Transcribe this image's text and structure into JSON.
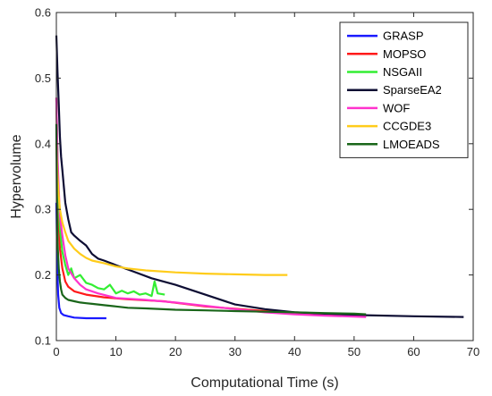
{
  "chart_data": {
    "type": "line",
    "xlabel": "Computational Time (s)",
    "ylabel": "Hypervolume",
    "xlim": [
      0,
      70
    ],
    "ylim": [
      0.1,
      0.6
    ],
    "xticks": [
      "0",
      "10",
      "20",
      "30",
      "40",
      "50",
      "60",
      "70"
    ],
    "yticks": [
      "0.1",
      "0.2",
      "0.3",
      "0.4",
      "0.5",
      "0.6"
    ],
    "grid": false,
    "legend_position": "top-right",
    "series": [
      {
        "name": "GRASP",
        "color": "#1a1aff",
        "x": [
          0,
          0.1,
          0.2,
          0.3,
          0.5,
          0.8,
          1.2,
          2,
          3,
          5,
          8.4
        ],
        "y": [
          0.31,
          0.25,
          0.2,
          0.17,
          0.15,
          0.142,
          0.139,
          0.137,
          0.135,
          0.134,
          0.134
        ]
      },
      {
        "name": "MOPSO",
        "color": "#ff1a1a",
        "x": [
          0,
          0.3,
          0.6,
          1,
          1.5,
          2,
          3,
          5,
          8,
          12,
          18,
          25,
          35,
          45,
          52
        ],
        "y": [
          0.47,
          0.3,
          0.24,
          0.21,
          0.19,
          0.182,
          0.175,
          0.17,
          0.166,
          0.163,
          0.16,
          0.152,
          0.145,
          0.14,
          0.137
        ]
      },
      {
        "name": "NSGAII",
        "color": "#33ee33",
        "x": [
          0,
          0.3,
          0.6,
          1,
          1.5,
          2,
          2.5,
          3,
          4,
          5,
          6,
          7,
          8,
          9,
          10,
          11,
          12,
          13,
          14,
          15,
          16,
          16.5,
          17,
          18.2
        ],
        "y": [
          0.47,
          0.33,
          0.27,
          0.235,
          0.215,
          0.2,
          0.21,
          0.195,
          0.2,
          0.188,
          0.185,
          0.18,
          0.178,
          0.185,
          0.172,
          0.176,
          0.172,
          0.175,
          0.17,
          0.172,
          0.168,
          0.19,
          0.172,
          0.17
        ]
      },
      {
        "name": "SparseEA2",
        "color": "#0d0d33",
        "x": [
          0,
          0.2,
          0.4,
          0.6,
          0.8,
          1,
          1.5,
          2,
          2.5,
          3,
          4,
          5,
          6,
          7,
          8,
          10,
          13,
          16,
          20,
          25,
          30,
          35,
          40,
          50,
          60,
          68.4
        ],
        "y": [
          0.565,
          0.51,
          0.46,
          0.41,
          0.38,
          0.36,
          0.31,
          0.285,
          0.265,
          0.26,
          0.252,
          0.245,
          0.232,
          0.225,
          0.222,
          0.215,
          0.205,
          0.195,
          0.185,
          0.17,
          0.155,
          0.148,
          0.143,
          0.139,
          0.137,
          0.136
        ]
      },
      {
        "name": "WOF",
        "color": "#ff33cc",
        "x": [
          0,
          0.2,
          0.4,
          0.6,
          1,
          1.5,
          2,
          3,
          4,
          5,
          7,
          10,
          15,
          20,
          25,
          30,
          35,
          40,
          45,
          52
        ],
        "y": [
          0.47,
          0.38,
          0.33,
          0.29,
          0.26,
          0.23,
          0.21,
          0.195,
          0.185,
          0.178,
          0.172,
          0.165,
          0.162,
          0.158,
          0.153,
          0.148,
          0.143,
          0.14,
          0.138,
          0.136
        ]
      },
      {
        "name": "CCGDE3",
        "color": "#ffcc1a",
        "x": [
          0,
          0.2,
          0.4,
          0.6,
          0.8,
          1,
          1.5,
          2,
          3,
          4,
          5,
          6,
          8,
          10,
          12,
          15,
          20,
          25,
          30,
          35,
          38.8
        ],
        "y": [
          0.4,
          0.35,
          0.32,
          0.3,
          0.29,
          0.28,
          0.265,
          0.252,
          0.24,
          0.232,
          0.226,
          0.222,
          0.218,
          0.213,
          0.21,
          0.207,
          0.204,
          0.202,
          0.201,
          0.2,
          0.2
        ]
      },
      {
        "name": "LMOEADS",
        "color": "#1a661a",
        "x": [
          0,
          0.1,
          0.2,
          0.4,
          0.6,
          0.8,
          1,
          1.5,
          2,
          3,
          4,
          5,
          6,
          8,
          10,
          12,
          15,
          20,
          25,
          30,
          35,
          40,
          45,
          50,
          52
        ],
        "y": [
          0.43,
          0.3,
          0.25,
          0.21,
          0.19,
          0.178,
          0.17,
          0.165,
          0.162,
          0.16,
          0.158,
          0.157,
          0.156,
          0.154,
          0.152,
          0.15,
          0.149,
          0.147,
          0.146,
          0.145,
          0.144,
          0.143,
          0.142,
          0.141,
          0.14
        ]
      }
    ]
  }
}
